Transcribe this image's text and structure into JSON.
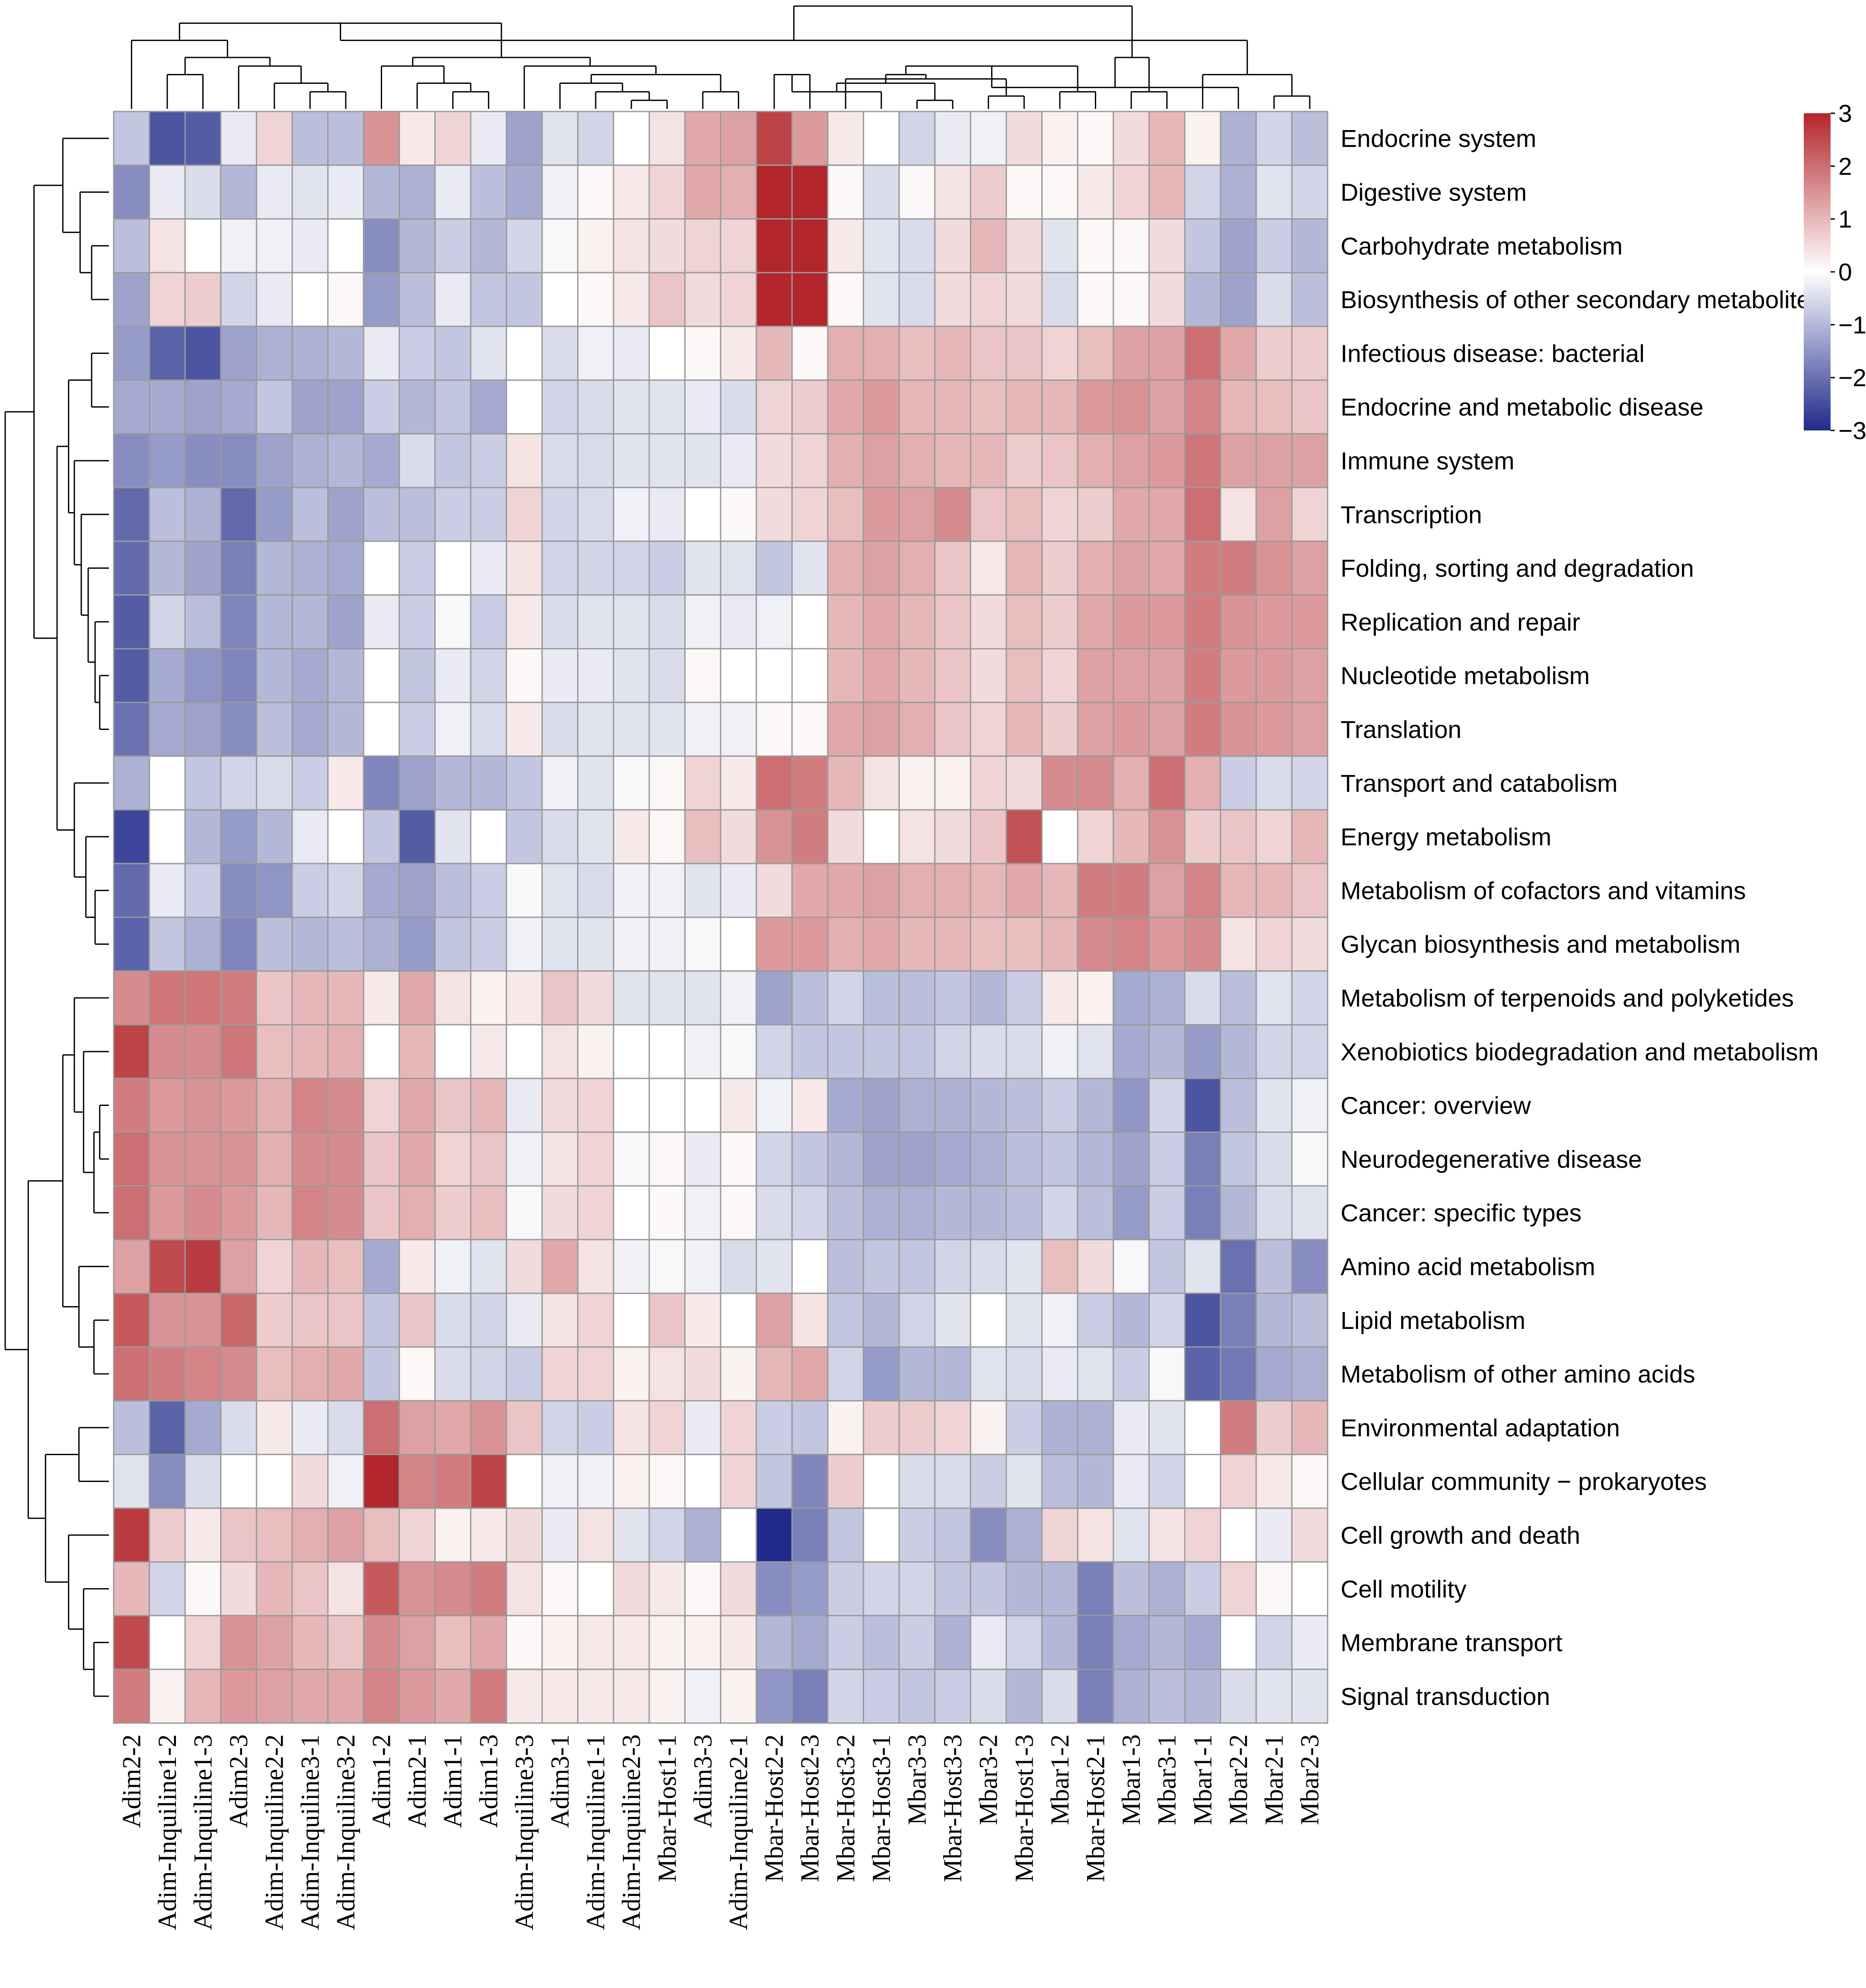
{
  "chart_data": {
    "type": "heatmap",
    "title": "",
    "rows": [
      "Endocrine system",
      "Digestive system",
      "Carbohydrate metabolism",
      "Biosynthesis of other secondary metabolites",
      "Infectious disease: bacterial",
      "Endocrine and metabolic disease",
      "Immune system",
      "Transcription",
      "Folding, sorting and degradation",
      "Replication and repair",
      "Nucleotide metabolism",
      "Translation",
      "Transport and catabolism",
      "Energy metabolism",
      "Metabolism of cofactors and vitamins",
      "Glycan biosynthesis and metabolism",
      "Metabolism of terpenoids and polyketides",
      "Xenobiotics biodegradation and metabolism",
      "Cancer: overview",
      "Neurodegenerative disease",
      "Cancer: specific types",
      "Amino acid metabolism",
      "Lipid metabolism",
      "Metabolism of other amino acids",
      "Environmental adaptation",
      "Cellular community − prokaryotes",
      "Cell growth and death",
      "Cell motility",
      "Membrane transport",
      "Signal transduction"
    ],
    "columns": [
      "Adim2-2",
      "Adim-Inquiline1-2",
      "Adim-Inquiline1-3",
      "Adim2-3",
      "Adim-Inquiline2-2",
      "Adim-Inquiline3-1",
      "Adim-Inquiline3-2",
      "Adim1-2",
      "Adim2-1",
      "Adim1-1",
      "Adim1-3",
      "Adim-Inquiline3-3",
      "Adim3-1",
      "Adim-Inquiline1-1",
      "Adim-Inquiline2-3",
      "Mbar-Host1-1",
      "Adim3-3",
      "Adim-Inquiline2-1",
      "Mbar-Host2-2",
      "Mbar-Host2-3",
      "Mbar-Host3-2",
      "Mbar-Host3-1",
      "Mbar3-3",
      "Mbar-Host3-3",
      "Mbar3-2",
      "Mbar-Host1-3",
      "Mbar1-2",
      "Mbar-Host2-1",
      "Mbar1-3",
      "Mbar3-1",
      "Mbar1-1",
      "Mbar2-2",
      "Mbar2-1",
      "Mbar2-3"
    ],
    "values": [
      [
        -0.8,
        -2.4,
        -2.3,
        -0.3,
        0.6,
        -0.9,
        -0.9,
        1.5,
        0.3,
        0.6,
        -0.3,
        -1.3,
        -0.4,
        -0.6,
        0.0,
        0.4,
        1.2,
        1.3,
        2.6,
        1.4,
        0.3,
        0.0,
        -0.6,
        -0.3,
        -0.2,
        0.5,
        0.2,
        0.1,
        0.5,
        1.0,
        0.2,
        -1.1,
        -0.6,
        -0.9
      ],
      [
        -1.6,
        -0.3,
        -0.5,
        -1.0,
        -0.3,
        -0.4,
        -0.3,
        -1.0,
        -1.1,
        -0.3,
        -0.9,
        -1.2,
        -0.2,
        0.1,
        0.3,
        0.6,
        1.2,
        1.1,
        3.2,
        3.0,
        0.1,
        -0.5,
        0.1,
        0.4,
        0.7,
        0.1,
        0.1,
        0.3,
        0.6,
        1.0,
        -0.6,
        -1.1,
        -0.4,
        -0.6
      ],
      [
        -0.9,
        0.4,
        0.0,
        -0.2,
        -0.2,
        -0.3,
        0.0,
        -1.6,
        -1.0,
        -0.7,
        -1.0,
        -0.6,
        -0.1,
        0.2,
        0.4,
        0.5,
        0.6,
        0.6,
        3.1,
        3.1,
        0.3,
        -0.4,
        -0.5,
        0.5,
        1.0,
        0.5,
        -0.4,
        0.1,
        0.1,
        0.5,
        -0.8,
        -1.3,
        -0.7,
        -1.0
      ],
      [
        -1.3,
        0.6,
        0.7,
        -0.6,
        -0.3,
        0.0,
        0.1,
        -1.4,
        -0.9,
        -0.3,
        -0.8,
        -0.8,
        0.0,
        0.1,
        0.3,
        0.8,
        0.5,
        0.6,
        3.1,
        3.3,
        0.1,
        -0.4,
        -0.5,
        0.5,
        0.6,
        0.5,
        -0.5,
        0.1,
        0.1,
        0.5,
        -1.0,
        -1.3,
        -0.5,
        -0.9
      ],
      [
        -1.4,
        -2.2,
        -2.4,
        -1.3,
        -1.1,
        -1.1,
        -1.0,
        -0.3,
        -0.7,
        -0.8,
        -0.4,
        0.0,
        -0.5,
        -0.2,
        -0.3,
        0.0,
        0.1,
        0.3,
        1.0,
        0.1,
        1.1,
        1.1,
        0.9,
        1.0,
        0.8,
        0.8,
        0.6,
        0.9,
        1.3,
        1.3,
        2.0,
        1.2,
        0.7,
        0.7
      ],
      [
        -1.2,
        -1.2,
        -1.3,
        -1.2,
        -0.8,
        -1.3,
        -1.3,
        -0.7,
        -1.0,
        -0.8,
        -1.2,
        0.0,
        -0.6,
        -0.5,
        -0.4,
        -0.4,
        -0.3,
        -0.5,
        0.6,
        0.7,
        1.2,
        1.4,
        1.0,
        1.0,
        0.9,
        1.0,
        1.0,
        1.4,
        1.5,
        1.3,
        1.7,
        1.0,
        0.9,
        0.8
      ],
      [
        -1.6,
        -1.4,
        -1.6,
        -1.6,
        -1.3,
        -1.1,
        -1.0,
        -1.2,
        -0.5,
        -0.8,
        -0.7,
        0.4,
        -0.5,
        -0.5,
        -0.4,
        -0.4,
        -0.4,
        -0.3,
        0.5,
        0.6,
        1.1,
        1.3,
        1.1,
        1.0,
        1.0,
        0.7,
        0.8,
        1.1,
        1.3,
        1.4,
        1.9,
        1.3,
        1.3,
        1.3
      ],
      [
        -2.1,
        -0.9,
        -1.1,
        -2.1,
        -1.4,
        -0.9,
        -1.3,
        -0.9,
        -0.9,
        -0.7,
        -0.7,
        0.6,
        -0.6,
        -0.5,
        -0.2,
        -0.3,
        0.0,
        0.1,
        0.5,
        0.6,
        0.9,
        1.4,
        1.3,
        1.6,
        0.8,
        0.9,
        0.6,
        0.7,
        1.2,
        1.2,
        2.0,
        0.4,
        1.3,
        0.6
      ],
      [
        -2.1,
        -1.0,
        -1.3,
        -1.8,
        -1.0,
        -1.1,
        -1.2,
        0.0,
        -0.7,
        0.0,
        -0.3,
        0.4,
        -0.6,
        -0.6,
        -0.6,
        -0.7,
        -0.4,
        -0.4,
        -0.8,
        -0.4,
        1.1,
        1.3,
        1.1,
        0.8,
        0.3,
        1.0,
        0.7,
        1.1,
        1.3,
        1.2,
        1.8,
        1.8,
        1.5,
        1.3
      ],
      [
        -2.3,
        -0.6,
        -0.9,
        -1.7,
        -1.0,
        -1.0,
        -1.3,
        -0.3,
        -0.7,
        -0.1,
        -0.7,
        0.3,
        -0.5,
        -0.4,
        -0.4,
        -0.5,
        -0.2,
        -0.3,
        -0.2,
        0.0,
        1.0,
        1.2,
        1.0,
        0.8,
        0.5,
        0.9,
        0.7,
        1.2,
        1.4,
        1.4,
        1.8,
        1.5,
        1.4,
        1.4
      ],
      [
        -2.3,
        -1.2,
        -1.5,
        -1.7,
        -1.0,
        -1.2,
        -1.0,
        0.0,
        -0.8,
        -0.3,
        -0.6,
        0.1,
        -0.3,
        -0.3,
        -0.4,
        -0.5,
        0.1,
        0.0,
        0.0,
        0.0,
        1.0,
        1.2,
        1.0,
        0.8,
        0.5,
        0.9,
        0.6,
        1.3,
        1.3,
        1.3,
        1.8,
        1.4,
        1.4,
        1.3
      ],
      [
        -2.0,
        -1.2,
        -1.3,
        -1.6,
        -0.9,
        -1.2,
        -1.0,
        0.0,
        -0.7,
        -0.2,
        -0.5,
        0.3,
        -0.5,
        -0.4,
        -0.4,
        -0.4,
        -0.2,
        -0.2,
        0.1,
        0.1,
        1.2,
        1.3,
        1.1,
        0.8,
        0.6,
        1.0,
        0.7,
        1.3,
        1.4,
        1.3,
        1.8,
        1.5,
        1.4,
        1.3
      ],
      [
        -1.1,
        0.0,
        -0.8,
        -0.6,
        -0.5,
        -0.7,
        0.3,
        -1.7,
        -1.3,
        -1.0,
        -1.0,
        -0.8,
        -0.2,
        -0.4,
        -0.1,
        0.1,
        0.6,
        0.3,
        2.0,
        1.8,
        1.0,
        0.4,
        0.2,
        0.2,
        0.6,
        0.5,
        1.6,
        1.6,
        1.1,
        2.0,
        1.1,
        -0.7,
        -0.5,
        -0.6
      ],
      [
        -2.6,
        0.0,
        -1.0,
        -1.4,
        -1.0,
        -0.3,
        0.0,
        -0.8,
        -2.3,
        -0.4,
        0.0,
        -0.8,
        -0.5,
        -0.4,
        0.3,
        0.1,
        0.9,
        0.5,
        1.5,
        1.8,
        0.5,
        0.0,
        0.4,
        0.5,
        0.8,
        2.4,
        0.0,
        0.6,
        1.0,
        1.5,
        0.7,
        0.8,
        0.6,
        1.0
      ],
      [
        -2.1,
        -0.3,
        -0.7,
        -1.6,
        -1.5,
        -0.7,
        -0.6,
        -1.2,
        -1.3,
        -0.9,
        -0.7,
        -0.1,
        -0.4,
        -0.5,
        -0.2,
        -0.2,
        -0.4,
        -0.3,
        0.5,
        1.2,
        1.2,
        1.3,
        1.1,
        1.1,
        1.0,
        1.2,
        1.0,
        1.8,
        1.8,
        1.3,
        1.7,
        1.0,
        1.0,
        0.8
      ],
      [
        -2.2,
        -0.8,
        -1.1,
        -1.7,
        -0.9,
        -1.0,
        -0.9,
        -1.1,
        -1.4,
        -0.8,
        -0.7,
        -0.2,
        -0.4,
        -0.4,
        -0.2,
        -0.2,
        -0.1,
        0.0,
        1.4,
        1.4,
        1.1,
        1.2,
        1.0,
        1.0,
        0.9,
        0.9,
        1.0,
        1.6,
        1.7,
        1.4,
        1.6,
        0.4,
        0.6,
        0.5
      ],
      [
        1.6,
        1.9,
        1.9,
        1.8,
        0.8,
        1.0,
        1.0,
        0.3,
        1.2,
        0.4,
        0.2,
        0.3,
        0.8,
        0.5,
        -0.4,
        -0.4,
        -0.4,
        -0.2,
        -1.3,
        -0.9,
        -0.6,
        -0.9,
        -0.9,
        -0.8,
        -1.0,
        -0.7,
        0.3,
        0.2,
        -1.2,
        -1.1,
        -0.5,
        -0.9,
        -0.4,
        -0.6
      ],
      [
        2.6,
        1.6,
        1.6,
        1.9,
        0.9,
        1.0,
        1.1,
        0.0,
        1.0,
        0.0,
        0.3,
        0.0,
        0.4,
        0.2,
        0.0,
        0.0,
        -0.2,
        -0.1,
        -0.6,
        -0.8,
        -0.8,
        -0.8,
        -0.8,
        -0.6,
        -0.5,
        -0.5,
        -0.2,
        -0.4,
        -1.2,
        -1.0,
        -1.4,
        -1.0,
        -0.6,
        -0.6
      ],
      [
        1.8,
        1.4,
        1.5,
        1.4,
        1.1,
        1.7,
        1.6,
        0.6,
        1.2,
        0.8,
        1.0,
        -0.3,
        0.5,
        0.6,
        0.0,
        0.0,
        0.0,
        0.3,
        -0.2,
        0.3,
        -1.2,
        -1.3,
        -1.1,
        -1.1,
        -1.0,
        -0.9,
        -0.7,
        -1.0,
        -1.5,
        -0.6,
        -2.4,
        -0.9,
        -0.4,
        -0.2
      ],
      [
        2.0,
        1.5,
        1.5,
        1.5,
        1.1,
        1.6,
        1.6,
        0.8,
        1.2,
        0.6,
        0.8,
        -0.2,
        0.4,
        0.6,
        -0.1,
        0.1,
        -0.3,
        0.1,
        -0.6,
        -0.8,
        -1.0,
        -1.3,
        -1.3,
        -1.2,
        -1.1,
        -0.9,
        -0.8,
        -1.0,
        -1.3,
        -0.7,
        -1.8,
        -0.8,
        -0.5,
        -0.1
      ],
      [
        2.0,
        1.4,
        1.6,
        1.4,
        1.0,
        1.7,
        1.6,
        0.8,
        1.1,
        0.7,
        0.9,
        -0.1,
        0.5,
        0.6,
        0.0,
        0.1,
        -0.2,
        0.1,
        -0.5,
        -0.6,
        -0.9,
        -1.1,
        -1.1,
        -1.0,
        -1.0,
        -0.9,
        -0.6,
        -0.9,
        -1.4,
        -0.7,
        -1.8,
        -1.0,
        -0.5,
        -0.4
      ],
      [
        1.3,
        2.5,
        2.7,
        1.3,
        0.6,
        1.0,
        0.9,
        -1.2,
        0.3,
        -0.2,
        -0.4,
        0.5,
        1.2,
        0.4,
        -0.2,
        -0.1,
        -0.2,
        -0.5,
        -0.4,
        0.0,
        -0.9,
        -0.8,
        -0.8,
        -0.6,
        -0.5,
        -0.4,
        0.9,
        0.5,
        -0.1,
        -0.8,
        -0.4,
        -2.0,
        -0.9,
        -1.6
      ],
      [
        2.3,
        1.5,
        1.5,
        2.1,
        0.7,
        0.8,
        0.8,
        -0.8,
        0.8,
        -0.5,
        -0.6,
        -0.3,
        0.4,
        0.6,
        0.0,
        0.8,
        0.3,
        0.0,
        1.3,
        0.4,
        -0.8,
        -1.0,
        -0.6,
        -0.4,
        0.0,
        -0.4,
        -0.2,
        -0.7,
        -1.0,
        -0.6,
        -2.4,
        -1.8,
        -1.0,
        -0.9
      ],
      [
        2.0,
        1.8,
        1.7,
        1.6,
        0.9,
        1.1,
        1.2,
        -0.8,
        0.1,
        -0.5,
        -0.6,
        -0.7,
        0.6,
        0.6,
        0.2,
        0.4,
        0.5,
        0.2,
        1.0,
        1.2,
        -0.6,
        -1.4,
        -1.0,
        -1.0,
        -0.4,
        -0.5,
        -0.3,
        -0.4,
        -0.7,
        -0.1,
        -2.2,
        -1.9,
        -1.2,
        -1.1
      ],
      [
        -0.9,
        -2.2,
        -1.2,
        -0.5,
        0.3,
        -0.3,
        -0.5,
        2.0,
        1.3,
        1.2,
        1.5,
        0.8,
        -0.6,
        -0.7,
        0.4,
        0.6,
        -0.3,
        0.6,
        -0.7,
        -0.8,
        0.2,
        0.7,
        0.7,
        0.6,
        0.2,
        -0.7,
        -1.1,
        -1.1,
        -0.3,
        -0.4,
        0.0,
        1.8,
        0.7,
        1.0
      ],
      [
        -0.4,
        -1.6,
        -0.5,
        0.0,
        0.0,
        0.5,
        -0.2,
        3.1,
        1.7,
        1.8,
        2.6,
        0.0,
        -0.2,
        -0.2,
        0.2,
        0.1,
        0.0,
        0.6,
        -0.8,
        -1.7,
        0.7,
        0.0,
        -0.5,
        -0.5,
        -0.7,
        -0.4,
        -0.9,
        -1.0,
        -0.3,
        -0.6,
        0.0,
        0.6,
        0.3,
        0.1
      ],
      [
        2.7,
        0.7,
        0.3,
        0.8,
        0.9,
        1.1,
        1.3,
        0.9,
        0.6,
        0.2,
        0.3,
        0.5,
        -0.3,
        0.4,
        -0.4,
        -0.6,
        -1.1,
        0.0,
        -3.2,
        -1.8,
        -0.8,
        0.0,
        -0.7,
        -0.8,
        -1.6,
        -1.1,
        0.6,
        0.4,
        -0.4,
        0.4,
        0.6,
        0.0,
        -0.3,
        0.5
      ],
      [
        1.0,
        -0.6,
        0.1,
        0.5,
        1.0,
        0.8,
        0.4,
        2.3,
        1.5,
        1.6,
        1.8,
        0.4,
        0.1,
        0.0,
        0.5,
        0.3,
        0.1,
        0.5,
        -1.6,
        -1.4,
        -0.7,
        -0.6,
        -0.6,
        -0.8,
        -0.8,
        -1.0,
        -1.0,
        -1.8,
        -0.9,
        -1.1,
        -0.7,
        0.6,
        0.1,
        0.0
      ],
      [
        2.5,
        0.0,
        0.6,
        1.5,
        1.3,
        1.0,
        0.8,
        1.6,
        1.3,
        0.9,
        1.2,
        0.1,
        0.2,
        0.3,
        0.3,
        0.2,
        0.2,
        0.3,
        -1.0,
        -1.2,
        -0.7,
        -0.9,
        -0.7,
        -1.1,
        -0.3,
        -0.6,
        -1.0,
        -1.8,
        -1.2,
        -1.0,
        -1.2,
        0.0,
        -0.6,
        -0.3
      ],
      [
        1.8,
        0.2,
        1.0,
        1.4,
        1.3,
        1.2,
        1.2,
        1.7,
        1.4,
        1.2,
        1.8,
        0.3,
        0.3,
        0.3,
        0.3,
        0.2,
        -0.2,
        0.2,
        -1.5,
        -1.8,
        -0.6,
        -0.7,
        -0.8,
        -0.7,
        -0.5,
        -1.0,
        -0.5,
        -1.8,
        -1.1,
        -0.9,
        -1.0,
        -0.5,
        -0.4,
        -0.4
      ]
    ],
    "color_scale": {
      "min": -3,
      "max": 3,
      "low_color": "#1f2a8a",
      "mid_color": "#ffffff",
      "high_color": "#b3262b"
    },
    "legend_ticks": [
      "3",
      "2",
      "1",
      "0",
      "−1",
      "−2",
      "−3"
    ],
    "legend_tick_values": [
      3,
      2,
      1,
      0,
      -1,
      -2,
      -3
    ],
    "legend_placement": "top-right",
    "row_dendrogram": "left",
    "column_dendrogram": "top"
  }
}
